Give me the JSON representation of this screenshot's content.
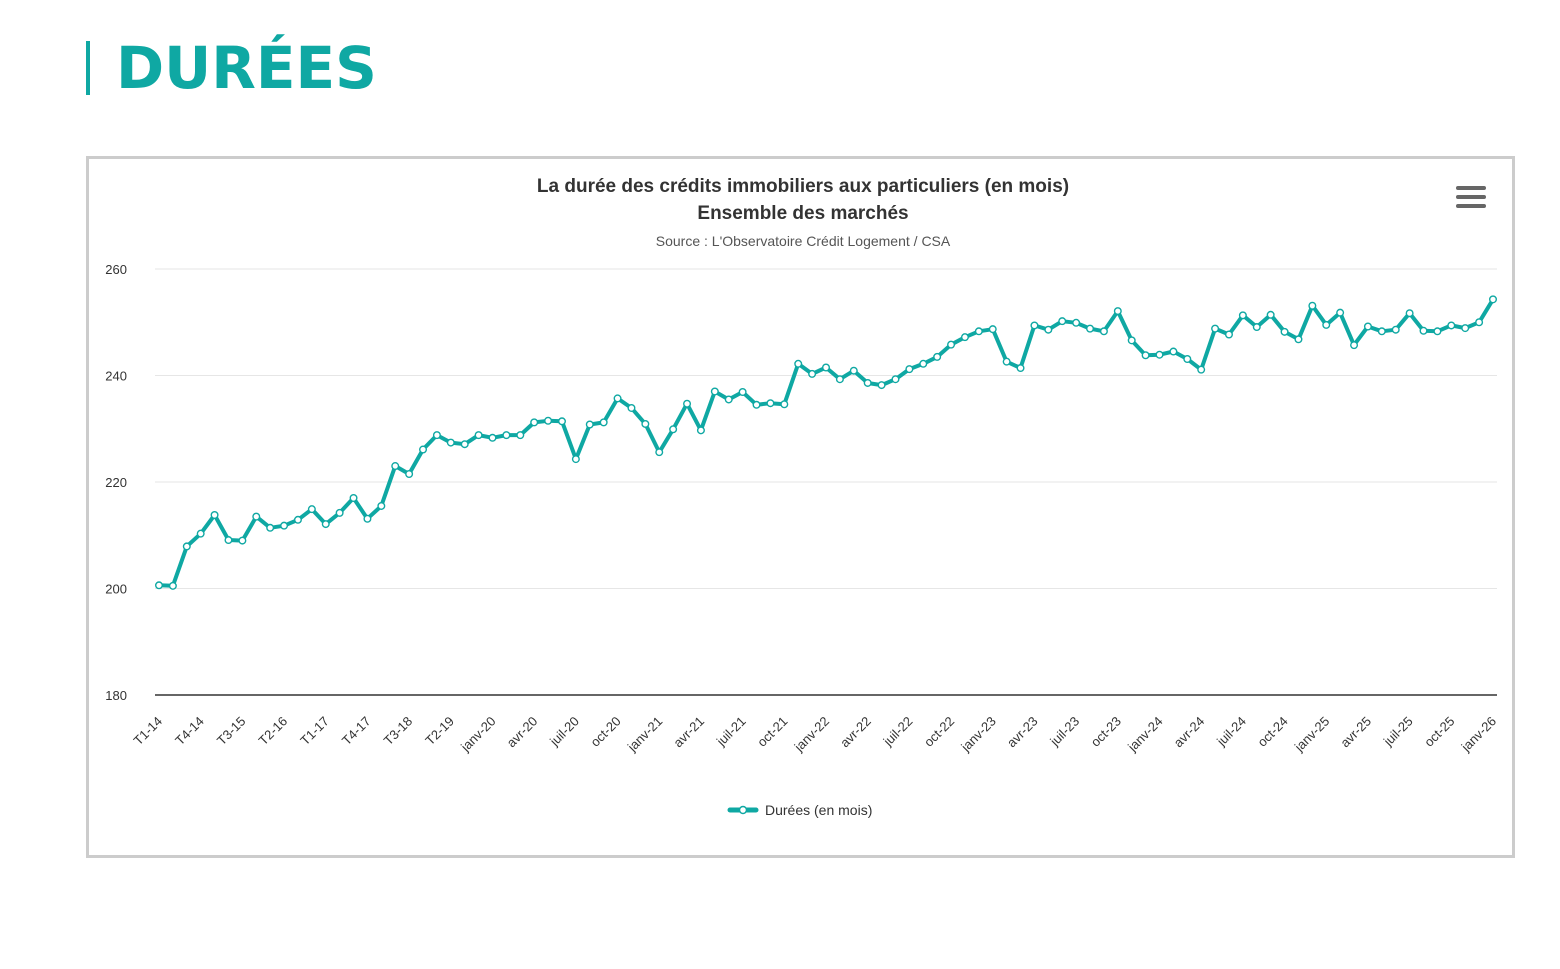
{
  "header": {
    "title": "DURÉES"
  },
  "menu": {
    "icon": "hamburger-menu-icon"
  },
  "colors": {
    "accent": "#0fa8a3",
    "grid": "#e6e6e6",
    "axis": "#333333"
  },
  "chart_data": {
    "type": "line",
    "title": "La durée des crédits immobiliers aux particuliers (en mois)",
    "subtitle": "Ensemble des marchés",
    "source": "Source : L'Observatoire Crédit Logement / CSA",
    "ylim": [
      180,
      260
    ],
    "yticks": [
      "180",
      "200",
      "220",
      "240",
      "260"
    ],
    "xtick_labels": [
      "T1-14",
      "T4-14",
      "T3-15",
      "T2-16",
      "T1-17",
      "T4-17",
      "T3-18",
      "T2-19",
      "janv-20",
      "avr-20",
      "juil-20",
      "oct-20",
      "janv-21",
      "avr-21",
      "juil-21",
      "oct-21",
      "janv-22",
      "avr-22",
      "juil-22",
      "oct-22",
      "janv-23",
      "avr-23",
      "juil-23",
      "oct-23",
      "janv-24",
      "avr-24",
      "juil-24",
      "oct-24",
      "janv-25",
      "avr-25",
      "juil-25",
      "oct-25",
      "janv-26"
    ],
    "legend_position": "bottom-center",
    "series": [
      {
        "name": "Durées (en mois)",
        "values": [
          200.6,
          200.5,
          207.9,
          210.3,
          213.8,
          209.1,
          209.0,
          213.5,
          211.4,
          211.8,
          212.9,
          214.9,
          212.1,
          214.2,
          217.0,
          213.1,
          215.5,
          223.0,
          221.5,
          226.1,
          228.8,
          227.4,
          227.1,
          228.8,
          228.3,
          228.8,
          228.8,
          231.2,
          231.5,
          231.4,
          224.3,
          230.8,
          231.2,
          235.7,
          233.9,
          230.9,
          225.6,
          229.9,
          234.7,
          229.7,
          237.0,
          235.5,
          236.9,
          234.5,
          234.8,
          234.6,
          242.2,
          240.3,
          241.5,
          239.3,
          240.9,
          238.6,
          238.2,
          239.3,
          241.2,
          242.2,
          243.5,
          245.8,
          247.2,
          248.3,
          248.7,
          242.6,
          241.4,
          249.4,
          248.6,
          250.2,
          249.9,
          248.8,
          248.3,
          252.1,
          246.6,
          243.8,
          243.9,
          244.5,
          243.1,
          241.1,
          248.8,
          247.7,
          251.3,
          249.1,
          251.4,
          248.2,
          246.8,
          253.1,
          249.5,
          251.8,
          245.7,
          249.2,
          248.3,
          248.6,
          251.7,
          248.4,
          248.3,
          249.4,
          248.9,
          250.0,
          254.3
        ]
      }
    ]
  }
}
